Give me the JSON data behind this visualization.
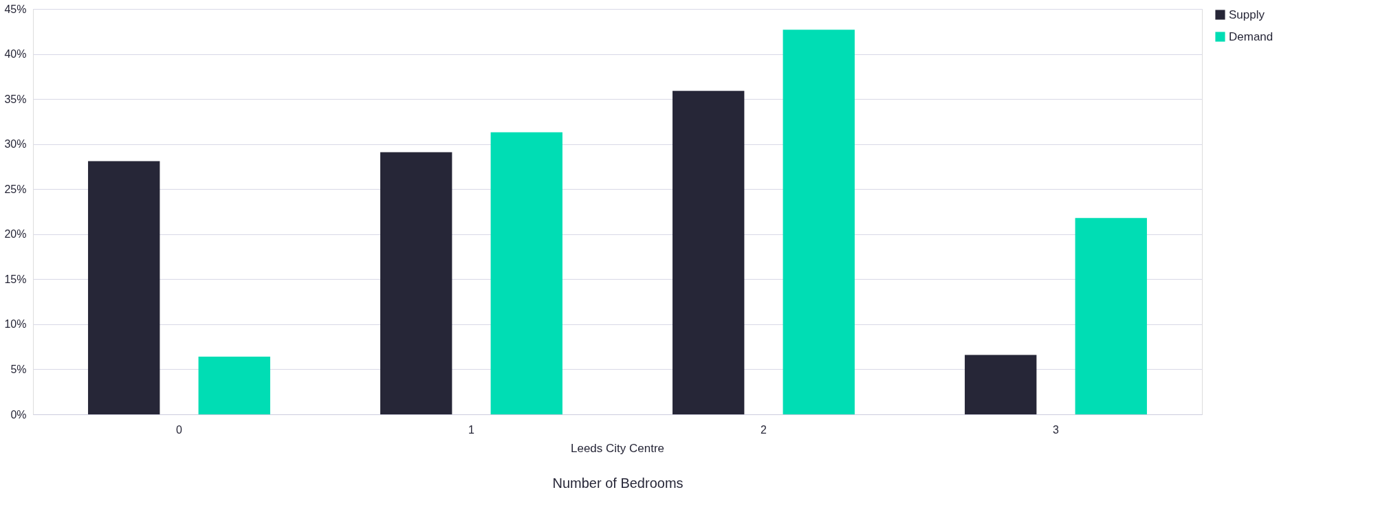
{
  "chart_data": {
    "type": "bar",
    "xlabel": "Number of Bedrooms",
    "annotations": [
      "Leeds City Centre"
    ],
    "categories": [
      "0",
      "1",
      "2",
      "3"
    ],
    "series": [
      {
        "name": "Supply",
        "color": "#262637",
        "values": [
          28.1,
          29.1,
          35.9,
          6.6
        ]
      },
      {
        "name": "Demand",
        "color": "#00ddb4",
        "values": [
          6.4,
          31.3,
          42.7,
          21.8
        ]
      }
    ],
    "ylim": [
      0,
      45
    ],
    "yticks": [
      {
        "value": 0,
        "label": "0%"
      },
      {
        "value": 5,
        "label": "5%"
      },
      {
        "value": 10,
        "label": "10%"
      },
      {
        "value": 15,
        "label": "15%"
      },
      {
        "value": 20,
        "label": "20%"
      },
      {
        "value": 25,
        "label": "25%"
      },
      {
        "value": 30,
        "label": "30%"
      },
      {
        "value": 35,
        "label": "35%"
      },
      {
        "value": 40,
        "label": "40%"
      },
      {
        "value": 45,
        "label": "45%"
      }
    ],
    "grid": "y",
    "legend": "right"
  }
}
